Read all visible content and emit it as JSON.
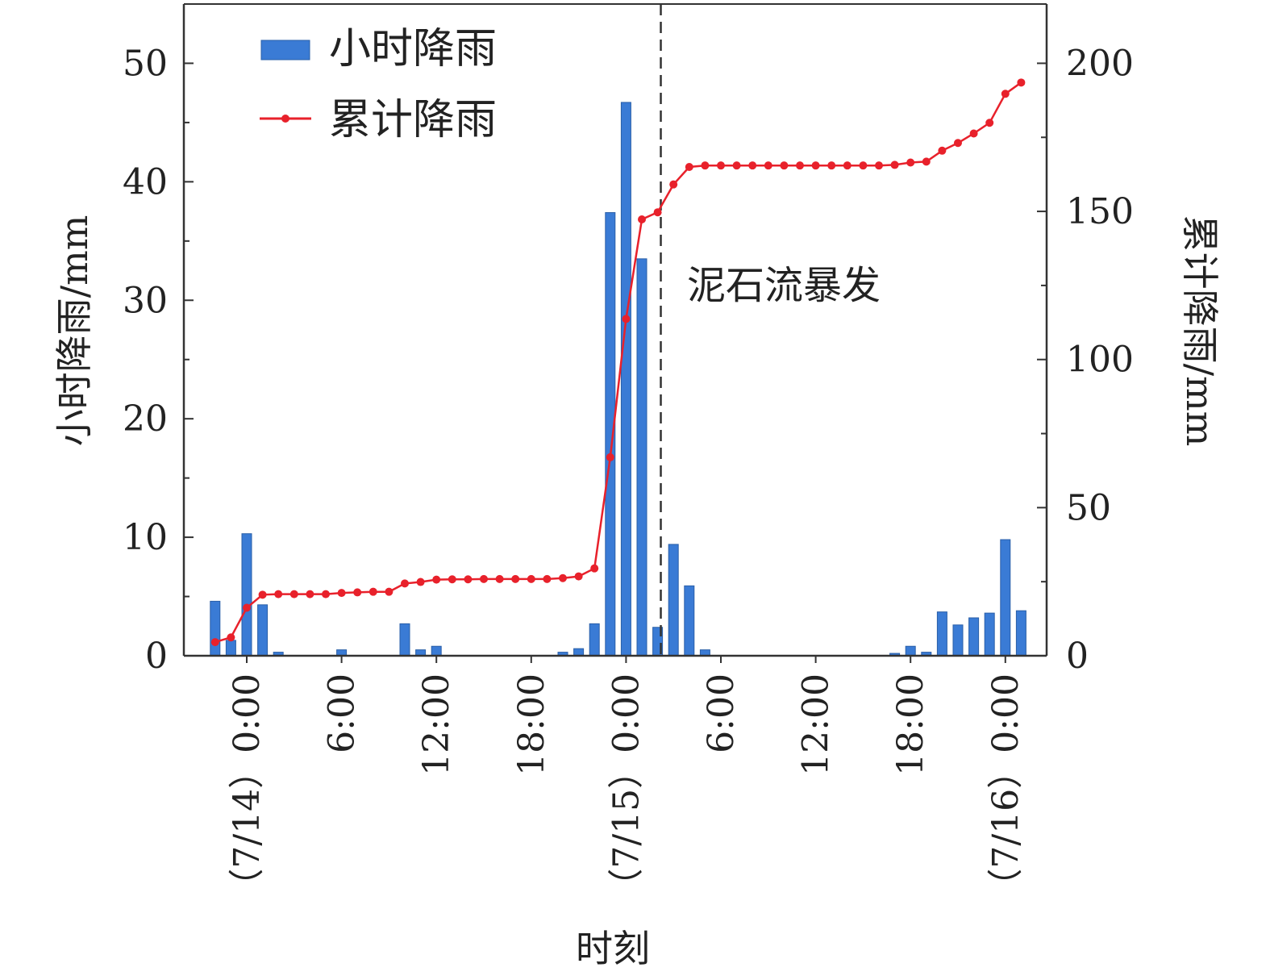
{
  "chart_data": {
    "type": "bar+line",
    "xlabel": "时刻",
    "ylabel_left": "小时降雨/mm",
    "ylabel_right": "累计降雨/mm",
    "ylim_left": [
      0,
      55
    ],
    "ylim_right": [
      0,
      220
    ],
    "yticks_left": [
      "0",
      "10",
      "20",
      "30",
      "40",
      "50"
    ],
    "yticks_right": [
      "0",
      "50",
      "100",
      "150",
      "200"
    ],
    "x_ticks": [
      {
        "hour": 0,
        "label": "（7/14）0:00"
      },
      {
        "hour": 6,
        "label": "6:00"
      },
      {
        "hour": 12,
        "label": "12:00"
      },
      {
        "hour": 18,
        "label": "18:00"
      },
      {
        "hour": 24,
        "label": "（7/15）0:00"
      },
      {
        "hour": 30,
        "label": "6:00"
      },
      {
        "hour": 36,
        "label": "12:00"
      },
      {
        "hour": 42,
        "label": "18:00"
      },
      {
        "hour": 48,
        "label": "（7/16）0:00"
      }
    ],
    "legend_position": "top-left",
    "annotation": {
      "hour": 26.2,
      "text": "泥石流暴发"
    },
    "series": [
      {
        "name": "小时降雨",
        "type": "bar",
        "color": "#3a7bd5",
        "axis": "left",
        "hours": [
          -2,
          -1,
          0,
          1,
          2,
          3,
          4,
          5,
          6,
          7,
          8,
          9,
          10,
          11,
          12,
          13,
          14,
          15,
          16,
          17,
          18,
          19,
          20,
          21,
          22,
          23,
          24,
          25,
          26,
          27,
          28,
          29,
          30,
          31,
          32,
          33,
          34,
          35,
          36,
          37,
          38,
          39,
          40,
          41,
          42,
          43,
          44,
          45,
          46,
          47,
          48,
          49
        ],
        "values": [
          4.6,
          1.3,
          10.3,
          4.3,
          0.3,
          0,
          0,
          0,
          0.5,
          0,
          0,
          0,
          2.7,
          0.5,
          0.8,
          0,
          0,
          0,
          0,
          0,
          0,
          0,
          0.3,
          0.6,
          2.7,
          37.4,
          46.7,
          33.5,
          2.4,
          9.4,
          5.9,
          0.5,
          0,
          0,
          0,
          0,
          0,
          0,
          0,
          0,
          0,
          0,
          0,
          0.2,
          0.8,
          0.3,
          3.7,
          2.6,
          3.2,
          3.6,
          9.8,
          3.8
        ]
      },
      {
        "name": "累计降雨",
        "type": "line",
        "color": "#e8212b",
        "axis": "right",
        "hours": [
          -2,
          -1,
          0,
          1,
          2,
          3,
          4,
          5,
          6,
          7,
          8,
          9,
          10,
          11,
          12,
          13,
          14,
          15,
          16,
          17,
          18,
          19,
          20,
          21,
          22,
          23,
          24,
          25,
          26,
          27,
          28,
          29,
          30,
          31,
          32,
          33,
          34,
          35,
          36,
          37,
          38,
          39,
          40,
          41,
          42,
          43,
          44,
          45,
          46,
          47,
          48,
          49
        ],
        "values": [
          4.6,
          6.2,
          16.2,
          20.6,
          20.8,
          20.8,
          20.8,
          20.8,
          21.2,
          21.4,
          21.6,
          21.6,
          24.4,
          24.9,
          25.7,
          25.8,
          25.8,
          25.9,
          25.9,
          25.9,
          25.9,
          25.9,
          26.2,
          26.8,
          29.5,
          67.0,
          113.7,
          147.3,
          149.7,
          159.1,
          165.0,
          165.5,
          165.5,
          165.5,
          165.5,
          165.5,
          165.5,
          165.5,
          165.5,
          165.5,
          165.5,
          165.5,
          165.5,
          165.7,
          166.5,
          166.8,
          170.5,
          173.1,
          176.3,
          179.9,
          189.7,
          193.5
        ]
      }
    ]
  }
}
